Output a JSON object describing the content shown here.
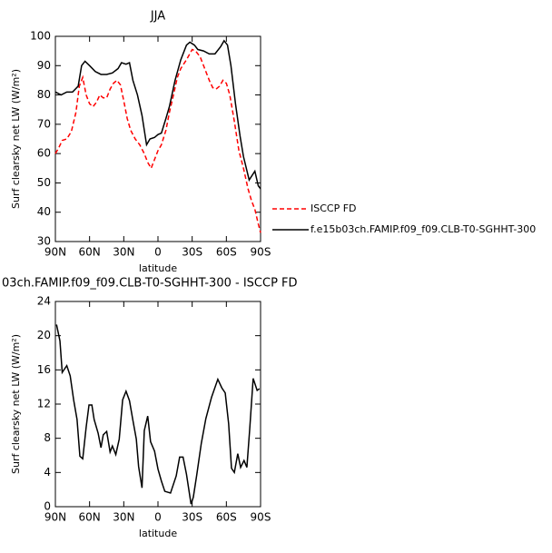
{
  "chart_data": [
    {
      "type": "line",
      "title": "JJA",
      "ylabel": "Surf clearsky net LW (W/m²)",
      "xlabel": "latitude",
      "xlim": [
        90,
        -90
      ],
      "ylim": [
        30,
        100
      ],
      "xticks": [
        {
          "value": 90,
          "label": "90N"
        },
        {
          "value": 60,
          "label": "60N"
        },
        {
          "value": 30,
          "label": "30N"
        },
        0,
        {
          "value": -30,
          "label": "30S"
        },
        {
          "value": -60,
          "label": "60S"
        },
        {
          "value": -90,
          "label": "90S"
        }
      ],
      "yticks": [
        30,
        40,
        50,
        60,
        70,
        80,
        90,
        100
      ],
      "legend": "right",
      "series": [
        {
          "name": "ISCCP FD",
          "color": "#ff0000",
          "dashed": true,
          "x": [
            90,
            87,
            84,
            80,
            76,
            72,
            69,
            66,
            63,
            60,
            57,
            54,
            51,
            48,
            45,
            42,
            39,
            36,
            33,
            30,
            27,
            24,
            20,
            16,
            12,
            9,
            6,
            3,
            0,
            -3,
            -7,
            -10,
            -13,
            -17,
            -20,
            -25,
            -30,
            -33,
            -37,
            -40,
            -45,
            -48,
            -51,
            -54,
            -57,
            -60,
            -63,
            -67,
            -71,
            -75,
            -79,
            -82,
            -85,
            -88,
            -90
          ],
          "values": [
            60,
            62,
            64.5,
            65,
            67.5,
            74,
            83,
            86,
            80,
            77,
            76,
            77.5,
            80,
            79,
            79,
            82,
            84,
            85,
            83.5,
            78,
            72,
            68,
            65,
            63,
            60,
            57,
            55,
            58,
            61,
            63,
            68,
            74,
            79,
            86,
            89,
            92,
            95.5,
            95,
            93,
            90,
            85,
            82.5,
            82,
            83,
            85,
            84,
            80,
            71,
            61,
            55,
            48,
            44,
            41,
            36,
            33
          ]
        },
        {
          "name": "f.e15b03ch.FAMIP.f09_f09.CLB-T0-SGHHT-300",
          "color": "#000000",
          "dashed": false,
          "x": [
            90,
            85,
            80,
            75,
            70,
            67,
            64,
            60,
            55,
            50,
            45,
            40,
            35,
            32,
            28,
            25,
            22,
            18,
            14,
            10,
            7,
            3,
            0,
            -3,
            -7,
            -10,
            -15,
            -20,
            -25,
            -28,
            -32,
            -35,
            -40,
            -45,
            -50,
            -55,
            -58,
            -61,
            -64,
            -68,
            -72,
            -75,
            -80,
            -85,
            -88,
            -90
          ],
          "values": [
            81,
            80,
            81,
            81,
            83,
            90,
            91.5,
            90,
            88,
            87,
            87,
            87.5,
            89,
            91,
            90.5,
            91,
            85,
            80,
            73,
            63,
            65,
            65.5,
            66.5,
            67,
            72,
            76,
            85,
            92,
            97,
            98,
            97,
            95.5,
            95,
            94,
            94,
            96.5,
            98.5,
            97,
            90,
            77,
            66,
            59,
            51,
            54,
            49,
            48
          ]
        }
      ]
    },
    {
      "type": "line",
      "title": "03ch.FAMIP.f09_f09.CLB-T0-SGHHT-300 - ISCCP FD",
      "ylabel": "Surf clearsky net LW (W/m²)",
      "xlabel": "latitude",
      "xlim": [
        90,
        -90
      ],
      "ylim": [
        0,
        24
      ],
      "xticks": [
        {
          "value": 90,
          "label": "90N"
        },
        {
          "value": 60,
          "label": "60N"
        },
        {
          "value": 30,
          "label": "30N"
        },
        0,
        {
          "value": -30,
          "label": "30S"
        },
        {
          "value": -60,
          "label": "60S"
        },
        {
          "value": -90,
          "label": "90S"
        }
      ],
      "yticks": [
        0,
        4,
        8,
        12,
        16,
        20,
        24
      ],
      "series": [
        {
          "color": "#000000",
          "dashed": false,
          "x": [
            89,
            86,
            84,
            80,
            77,
            74,
            71,
            68.5,
            66,
            63,
            60.5,
            58,
            56,
            52.5,
            50,
            48,
            45,
            42,
            40,
            37,
            34,
            31,
            28,
            25,
            22,
            19,
            17,
            14,
            12,
            9,
            6.5,
            3,
            0,
            -3,
            -6,
            -11,
            -16,
            -19,
            -22,
            -25,
            -29,
            -31,
            -34,
            -38,
            -42,
            -47,
            -52.5,
            -56,
            -59,
            -62,
            -64.5,
            -67,
            -70,
            -72.5,
            -75.5,
            -78,
            -80.5,
            -83.5,
            -87,
            -89
          ],
          "values": [
            21.3,
            19.4,
            15.7,
            16.5,
            15.3,
            12.5,
            10.2,
            5.9,
            5.6,
            9.3,
            11.9,
            11.9,
            10.2,
            8.6,
            6.9,
            8.4,
            8.8,
            6.4,
            7.1,
            6.1,
            7.9,
            12.5,
            13.5,
            12.4,
            10.1,
            7.9,
            4.7,
            2.2,
            8.9,
            10.6,
            7.6,
            6.5,
            4.4,
            3.0,
            1.8,
            1.6,
            3.6,
            5.8,
            5.8,
            3.8,
            0.3,
            1.1,
            3.7,
            7.4,
            10.3,
            12.8,
            14.9,
            13.9,
            13.3,
            9.7,
            4.5,
            4.0,
            6.2,
            4.6,
            5.4,
            4.6,
            9.1,
            15.0,
            13.6,
            13.8
          ]
        }
      ]
    }
  ]
}
